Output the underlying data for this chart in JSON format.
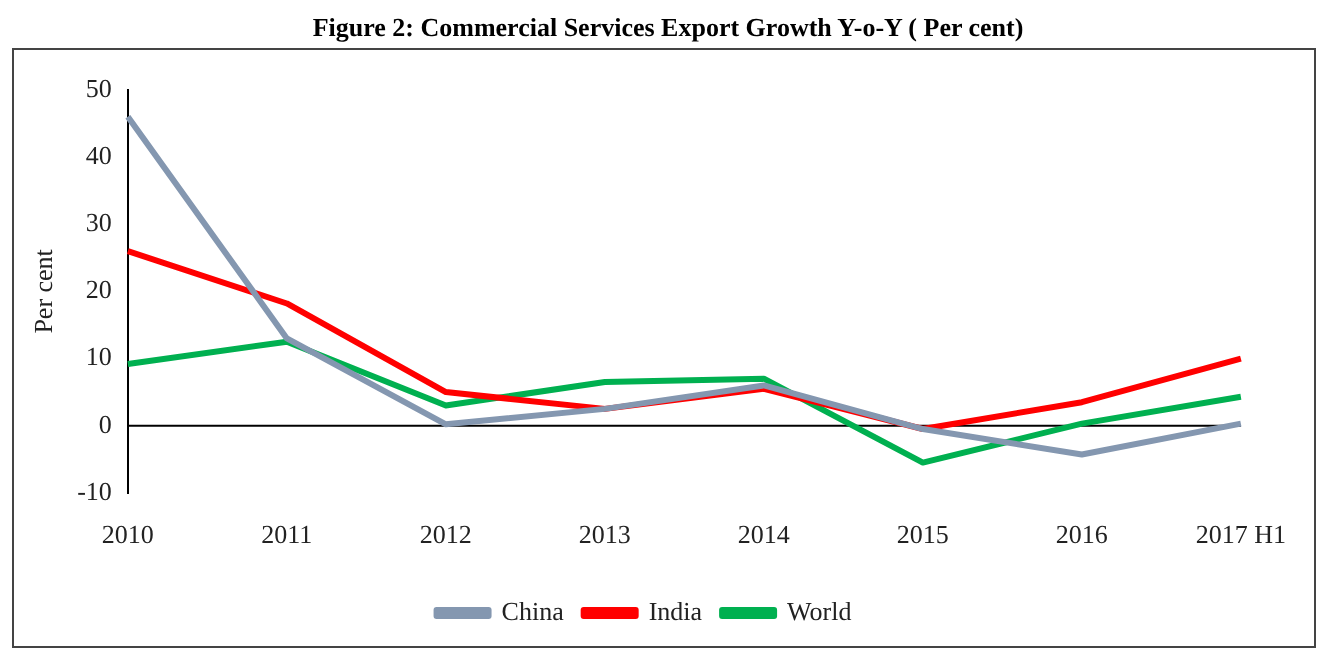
{
  "chart_data": {
    "type": "line",
    "title": "Figure 2: Commercial Services Export Growth Y-o-Y ( Per cent)",
    "ylabel": "Per cent",
    "categories": [
      "2010",
      "2011",
      "2012",
      "2013",
      "2014",
      "2015",
      "2016",
      "2017 H1"
    ],
    "series": [
      {
        "name": "China",
        "color": "#8497b0",
        "values": [
          46,
          13,
          0.2,
          2.5,
          6,
          -0.5,
          -4.3,
          0.3
        ]
      },
      {
        "name": "India",
        "color": "#ff0000",
        "values": [
          26,
          18.2,
          5,
          2.5,
          5.5,
          -0.5,
          3.5,
          10
        ]
      },
      {
        "name": "World",
        "color": "#00b050",
        "values": [
          9.2,
          12.5,
          3,
          6.5,
          7,
          -5.5,
          0.3,
          4.3
        ]
      }
    ],
    "ylim": [
      -10,
      50
    ],
    "yticks": [
      -10,
      0,
      10,
      20,
      30,
      40,
      50
    ],
    "ref_lines": [
      {
        "axis": "y",
        "value": 0,
        "color": "#000000"
      }
    ],
    "grid": false,
    "legend": "bottom",
    "marker": "none",
    "line_style": "solid"
  }
}
